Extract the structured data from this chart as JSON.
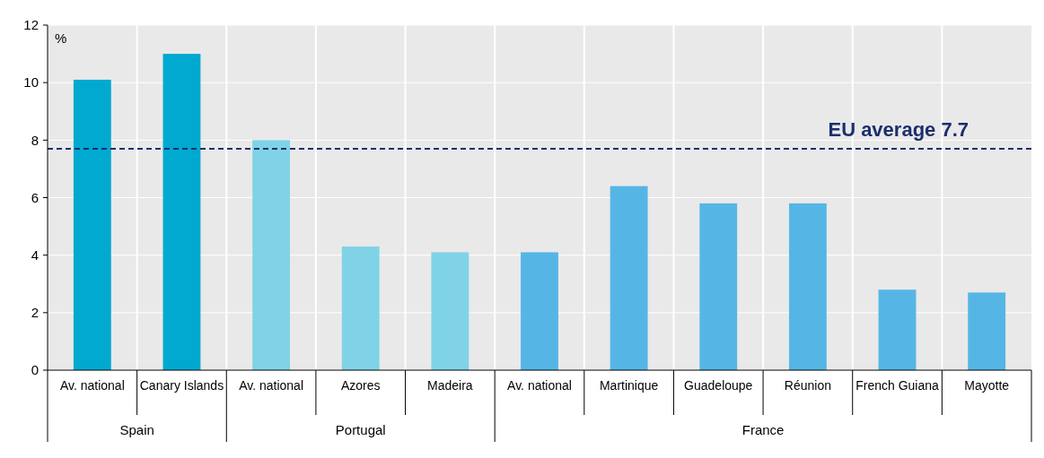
{
  "chart_data": {
    "type": "bar",
    "ylabel": "%",
    "categories": [
      "Av. national",
      "Canary Islands",
      "Av. national",
      "Azores",
      "Madeira",
      "Av. national",
      "Martinique",
      "Guadeloupe",
      "Réunion",
      "French Guiana",
      "Mayotte"
    ],
    "values": [
      10.1,
      11.0,
      8.0,
      4.3,
      4.1,
      4.1,
      6.4,
      5.8,
      5.8,
      2.8,
      2.7
    ],
    "colors": [
      "#00a9cf",
      "#00a9cf",
      "#80d3e6",
      "#80d3e6",
      "#80d3e6",
      "#55b6e6",
      "#55b6e6",
      "#55b6e6",
      "#55b6e6",
      "#55b6e6",
      "#55b6e6"
    ],
    "ylim": [
      0,
      12
    ],
    "yticks": [
      0,
      2,
      4,
      6,
      8,
      10,
      12
    ],
    "grid": true,
    "ref_lines": [
      {
        "axis": "y",
        "value": 7.7,
        "label": "EU average 7.7",
        "color": "#1b2f6e",
        "line_style": "dashed"
      }
    ],
    "annotations": [
      "Spain",
      "Portugal",
      "France"
    ]
  }
}
